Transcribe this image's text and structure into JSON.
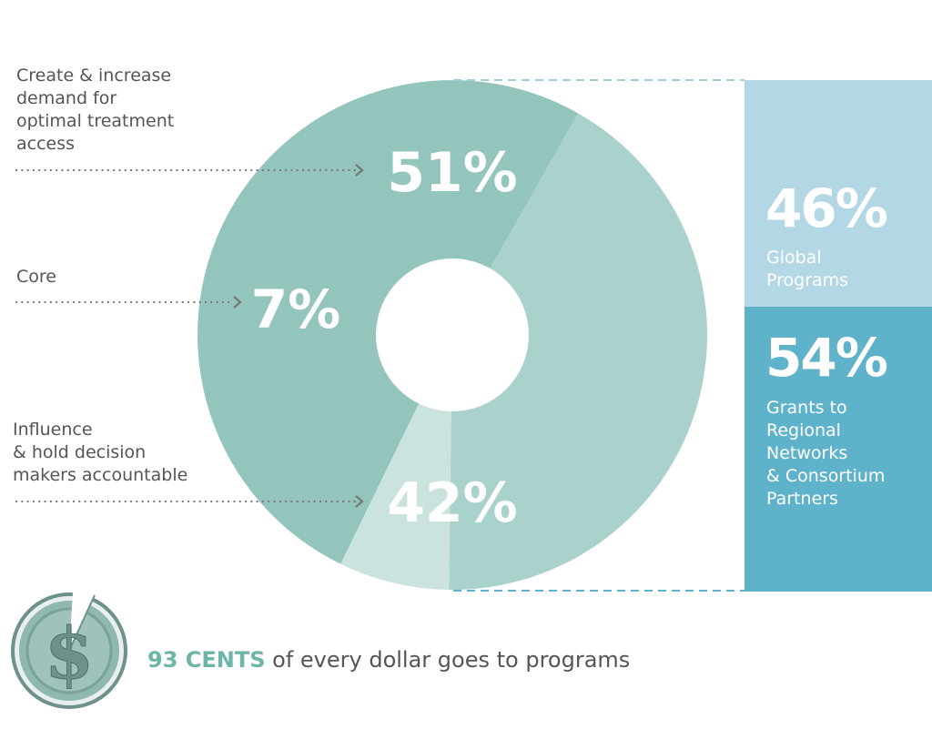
{
  "chart_data": [
    {
      "type": "pie",
      "categories": [
        "Create & increase\ndemand for\noptimal treatment\naccess",
        "Core",
        "Influence\n& hold decision\nmakers accountable"
      ],
      "values": [
        51,
        7,
        42
      ],
      "value_labels": [
        "51%",
        "7%",
        "42%"
      ],
      "colors": [
        "#93c5bc",
        "#cbe3df",
        "#aad2cc"
      ]
    },
    {
      "type": "bar",
      "categories": [
        "Global\nPrograms",
        "Grants to\nRegional\nNetworks\n& Consortium\nPartners"
      ],
      "values": [
        46,
        54
      ],
      "value_labels": [
        "46%",
        "54%"
      ],
      "colors": [
        "#b3d7e4",
        "#5eb3ca"
      ]
    }
  ],
  "footer": {
    "highlight": "93 CENTS",
    "rest": " of every dollar goes to programs"
  },
  "colors": {
    "dots": "#777777",
    "connector": "#9ccfe0",
    "coin": "#8fb8b0",
    "coin_rim": "#6f918c"
  }
}
